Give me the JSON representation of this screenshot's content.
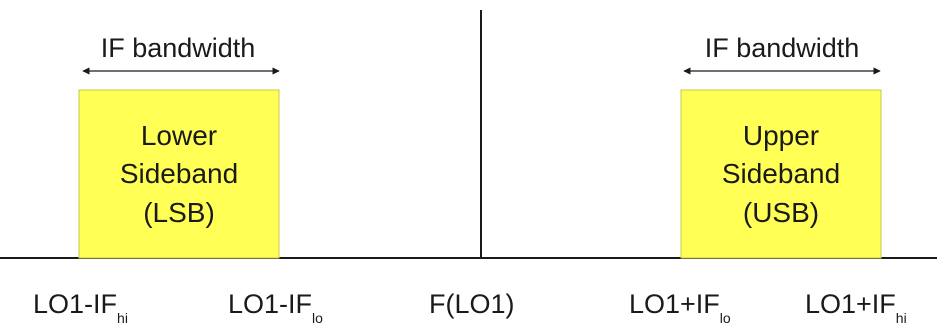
{
  "colors": {
    "sideband_fill": "#ffff55",
    "sideband_stroke": "#c9c94a",
    "line": "#1a1a1a"
  },
  "lower_band": {
    "bandwidth_label": "IF bandwidth",
    "line1": "Lower",
    "line2": "Sideband",
    "line3": "(LSB)"
  },
  "upper_band": {
    "bandwidth_label": "IF bandwidth",
    "line1": "Upper",
    "line2": "Sideband",
    "line3": "(USB)"
  },
  "axis_labels": {
    "lo1_minus_if_hi": {
      "main": "LO1-IF",
      "sub": "hi"
    },
    "lo1_minus_if_lo": {
      "main": "LO1-IF",
      "sub": "lo"
    },
    "f_lo1": {
      "main": "F(LO1)"
    },
    "lo1_plus_if_lo": {
      "main": "LO1+IF",
      "sub": "lo"
    },
    "lo1_plus_if_hi": {
      "main": "LO1+IF",
      "sub": "hi"
    }
  }
}
